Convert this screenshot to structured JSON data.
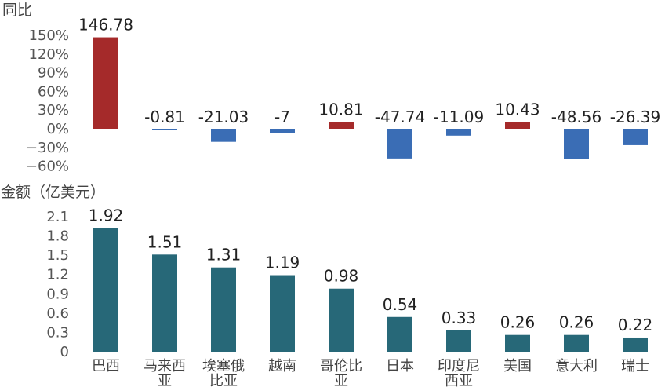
{
  "chart_data": [
    {
      "type": "bar",
      "ylabel": "同比",
      "categories": [
        "巴西",
        "马来西亚",
        "埃塞俄比亚",
        "越南",
        "哥伦比亚",
        "日本",
        "印度尼西亚",
        "美国",
        "意大利",
        "瑞士"
      ],
      "values": [
        146.78,
        -0.81,
        -21.03,
        -7,
        10.81,
        -47.74,
        -11.09,
        10.43,
        -48.56,
        -26.39
      ],
      "value_labels": [
        "146.78",
        "-0.81",
        "-21.03",
        "-7",
        "10.81",
        "-47.74",
        "-11.09",
        "10.43",
        "-48.56",
        "-26.39"
      ],
      "ylim": [
        -60,
        150
      ],
      "yticks": [
        "150%",
        "120%",
        "90%",
        "60%",
        "30%",
        "0%",
        "−30%",
        "−60%"
      ],
      "colors": {
        "positive": "#A52A2A",
        "negative": "#3A6DB5"
      },
      "grid": false
    },
    {
      "type": "bar",
      "ylabel": "金额（亿美元）",
      "categories": [
        "巴西",
        "马来西亚",
        "埃塞俄比亚",
        "越南",
        "哥伦比亚",
        "日本",
        "印度尼西亚",
        "美国",
        "意大利",
        "瑞士"
      ],
      "category_lines": [
        [
          "巴西"
        ],
        [
          "马来西",
          "亚"
        ],
        [
          "埃塞俄",
          "比亚"
        ],
        [
          "越南"
        ],
        [
          "哥伦比",
          "亚"
        ],
        [
          "日本"
        ],
        [
          "印度尼",
          "西亚"
        ],
        [
          "美国"
        ],
        [
          "意大利"
        ],
        [
          "瑞士"
        ]
      ],
      "values": [
        1.92,
        1.51,
        1.31,
        1.19,
        0.98,
        0.54,
        0.33,
        0.26,
        0.26,
        0.22
      ],
      "value_labels": [
        "1.92",
        "1.51",
        "1.31",
        "1.19",
        "0.98",
        "0.54",
        "0.33",
        "0.26",
        "0.26",
        "0.22"
      ],
      "ylim": [
        0,
        2.1
      ],
      "yticks": [
        "2.1",
        "1.8",
        "1.5",
        "1.2",
        "0.9",
        "0.6",
        "0.3",
        "0"
      ],
      "colors": {
        "bar": "#276878"
      },
      "grid": false
    }
  ]
}
